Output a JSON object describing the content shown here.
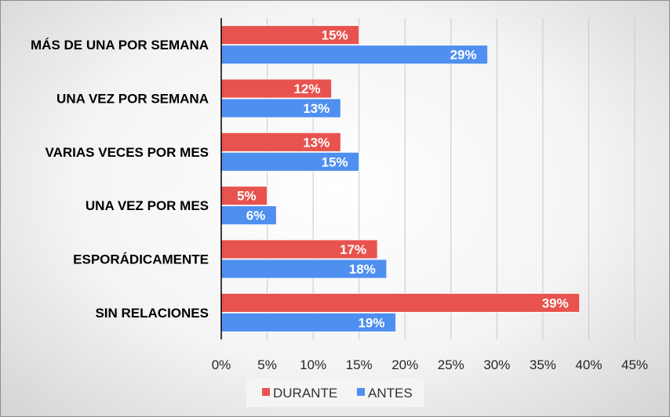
{
  "chart_data": {
    "type": "bar",
    "orientation": "horizontal",
    "categories": [
      "MÁS DE UNA  POR SEMANA",
      "UNA  VEZ POR SEMANA",
      "VARIAS VECES POR MES",
      "UNA VEZ POR MES",
      "ESPORÁDICAMENTE",
      "SIN RELACIONES"
    ],
    "series": [
      {
        "name": "DURANTE",
        "values": [
          15,
          12,
          13,
          5,
          17,
          39
        ],
        "color": "#e8534f"
      },
      {
        "name": "ANTES",
        "values": [
          29,
          13,
          15,
          6,
          18,
          19
        ],
        "color": "#4f8ff0"
      }
    ],
    "xlim": [
      0,
      45
    ],
    "xticks": [
      "0%",
      "5%",
      "10%",
      "15%",
      "20%",
      "25%",
      "30%",
      "35%",
      "40%",
      "45%"
    ],
    "value_suffix": "%",
    "grid": true,
    "legend_position": "bottom"
  }
}
